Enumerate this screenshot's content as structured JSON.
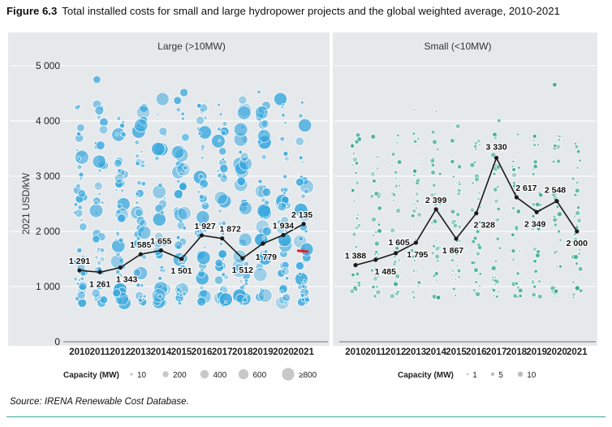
{
  "figure": {
    "number": "Figure 6.3",
    "title": "Total installed costs for small and large hydropower projects and the global weighted average, 2010-2021"
  },
  "source": "Source: IRENA Renewable Cost Database.",
  "colors": {
    "panel_bg": "#e6e9ec",
    "large_bubble": "#38a7dd",
    "small_bubble": "#2ea58c",
    "average_line": "#1a1a1a",
    "highlight": "#e41e26",
    "rule": "#3aa89a"
  },
  "chart_data": [
    {
      "panel": "Large (>10MW)",
      "type": "scatter",
      "ylabel": "2021 USD/kW",
      "xlabel": "",
      "ylim": [
        0,
        5000
      ],
      "yticks": [
        1000,
        2000,
        3000,
        4000,
        5000
      ],
      "ytick_labels": [
        "1 000",
        "2 000",
        "3 000",
        "4 000",
        "5 000"
      ],
      "categories": [
        "2010",
        "2011",
        "2012",
        "2013",
        "2014",
        "2015",
        "2016",
        "2017",
        "2018",
        "2019",
        "2020",
        "2021"
      ],
      "grid": true,
      "series": [
        {
          "name": "Global weighted average",
          "values": [
            1291,
            1261,
            1343,
            1585,
            1655,
            1501,
            1927,
            1872,
            1512,
            1779,
            1934,
            2135
          ],
          "labels": [
            "1 291",
            "1 261",
            "1 343",
            "1 585",
            "1 655",
            "1 501",
            "1 927",
            "1 872",
            "1 512",
            "1 779",
            "1 934",
            "2 135"
          ]
        }
      ],
      "legend": {
        "title": "Capacity (MW)",
        "entries": [
          "10",
          "200",
          "400",
          "600",
          "≥800"
        ],
        "placement": "bottom"
      }
    },
    {
      "panel": "Small (<10MW)",
      "type": "scatter",
      "ylim": [
        0,
        5000
      ],
      "categories": [
        "2010",
        "2011",
        "2012",
        "2013",
        "2014",
        "2015",
        "2016",
        "2017",
        "2018",
        "2019",
        "2020",
        "2021"
      ],
      "grid": true,
      "series": [
        {
          "name": "Global weighted average",
          "values": [
            1388,
            1485,
            1605,
            1795,
            2399,
            1867,
            2328,
            3330,
            2617,
            2349,
            2548,
            2000
          ],
          "labels": [
            "1 388",
            "1 485",
            "1 605",
            "1 795",
            "2 399",
            "1 867",
            "2 328",
            "3 330",
            "2 617",
            "2 349",
            "2 548",
            "2 000"
          ]
        }
      ],
      "legend": {
        "title": "Capacity (MW)",
        "entries": [
          "1",
          "5",
          "10"
        ],
        "placement": "bottom"
      }
    }
  ]
}
